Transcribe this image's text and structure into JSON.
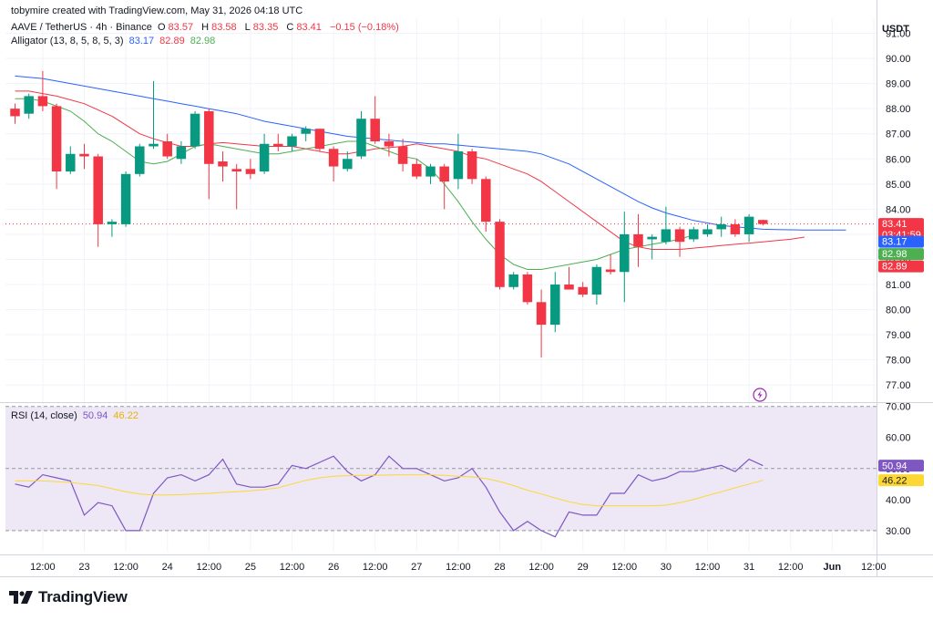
{
  "header": {
    "attribution": "tobymire created with TradingView.com, May 31, 2026 04:18 UTC"
  },
  "symbol": {
    "title": "AAVE / TetherUS · 4h · Binance",
    "ohlc": {
      "o_label": "O",
      "o": "83.57",
      "h_label": "H",
      "h": "83.58",
      "l_label": "L",
      "l": "83.35",
      "c_label": "C",
      "c": "83.41",
      "change": "−0.15 (−0.18%)"
    }
  },
  "alligator_legend": {
    "label": "Alligator (13, 8, 5, 8, 5, 3)",
    "values": [
      "83.17",
      "82.89",
      "82.98"
    ]
  },
  "rsi_legend": {
    "label": "RSI (14, close)",
    "values": [
      "50.94",
      "46.22"
    ]
  },
  "currency": "USDT",
  "price_labels": {
    "last": "83.41",
    "countdown": "03:41:59",
    "jaw": "83.17",
    "lips": "82.98",
    "teeth": "82.89"
  },
  "rsi_labels": {
    "rsi": "50.94",
    "ma": "46.22"
  },
  "brand": {
    "name": "TradingView"
  },
  "colors": {
    "up": "#089981",
    "down": "#F23645",
    "jaw": "#2962FF",
    "teeth": "#F23645",
    "lips": "#4CAF50",
    "rsi": "#7E57C2",
    "rsi_ma": "#FDD835",
    "rsi_band": "#EDE7F6",
    "text": "#131722",
    "grid": "#F0F3FA"
  },
  "icons": {
    "lightning": "lightning-icon"
  },
  "chart_data": [
    {
      "type": "candlestick",
      "title": "AAVE / TetherUS · 4h · Binance",
      "ylim": [
        76.5,
        91.6
      ],
      "yticks": [
        77,
        78,
        79,
        80,
        81,
        82,
        83,
        84,
        85,
        86,
        87,
        88,
        89,
        90,
        91
      ],
      "x_tick_labels": [
        {
          "i": 2,
          "label": "12:00"
        },
        {
          "i": 5,
          "label": "23"
        },
        {
          "i": 8,
          "label": "12:00"
        },
        {
          "i": 11,
          "label": "24"
        },
        {
          "i": 14,
          "label": "12:00"
        },
        {
          "i": 17,
          "label": "25"
        },
        {
          "i": 20,
          "label": "12:00"
        },
        {
          "i": 23,
          "label": "26"
        },
        {
          "i": 26,
          "label": "12:00"
        },
        {
          "i": 29,
          "label": "27"
        },
        {
          "i": 32,
          "label": "12:00"
        },
        {
          "i": 35,
          "label": "28"
        },
        {
          "i": 38,
          "label": "12:00"
        },
        {
          "i": 41,
          "label": "29"
        },
        {
          "i": 44,
          "label": "12:00"
        },
        {
          "i": 47,
          "label": "30"
        },
        {
          "i": 50,
          "label": "12:00"
        },
        {
          "i": 53,
          "label": "31"
        },
        {
          "i": 56,
          "label": "12:00"
        },
        {
          "i": 59,
          "label": "Jun"
        },
        {
          "i": 62,
          "label": "12:00"
        }
      ],
      "candles": [
        {
          "o": 88.0,
          "h": 88.2,
          "l": 87.4,
          "c": 87.7
        },
        {
          "o": 87.8,
          "h": 88.6,
          "l": 87.6,
          "c": 88.5
        },
        {
          "o": 88.5,
          "h": 89.5,
          "l": 87.9,
          "c": 88.1
        },
        {
          "o": 88.1,
          "h": 88.2,
          "l": 84.8,
          "c": 85.5
        },
        {
          "o": 85.5,
          "h": 86.5,
          "l": 85.4,
          "c": 86.2
        },
        {
          "o": 86.2,
          "h": 86.6,
          "l": 85.6,
          "c": 86.1
        },
        {
          "o": 86.1,
          "h": 86.2,
          "l": 82.5,
          "c": 83.4
        },
        {
          "o": 83.4,
          "h": 83.6,
          "l": 82.9,
          "c": 83.5
        },
        {
          "o": 83.4,
          "h": 85.5,
          "l": 83.3,
          "c": 85.4
        },
        {
          "o": 85.4,
          "h": 86.6,
          "l": 85.3,
          "c": 86.5
        },
        {
          "o": 86.5,
          "h": 89.1,
          "l": 86.4,
          "c": 86.6
        },
        {
          "o": 86.7,
          "h": 87.0,
          "l": 86.0,
          "c": 86.1
        },
        {
          "o": 86.0,
          "h": 86.7,
          "l": 85.8,
          "c": 86.5
        },
        {
          "o": 86.5,
          "h": 87.9,
          "l": 86.4,
          "c": 87.8
        },
        {
          "o": 87.9,
          "h": 88.0,
          "l": 84.4,
          "c": 85.8
        },
        {
          "o": 85.9,
          "h": 86.3,
          "l": 85.1,
          "c": 85.7
        },
        {
          "o": 85.6,
          "h": 85.8,
          "l": 84.0,
          "c": 85.5
        },
        {
          "o": 85.6,
          "h": 86.0,
          "l": 85.2,
          "c": 85.4
        },
        {
          "o": 85.5,
          "h": 87.0,
          "l": 85.4,
          "c": 86.6
        },
        {
          "o": 86.6,
          "h": 87.0,
          "l": 86.3,
          "c": 86.5
        },
        {
          "o": 86.5,
          "h": 87.0,
          "l": 86.3,
          "c": 86.9
        },
        {
          "o": 87.0,
          "h": 87.3,
          "l": 86.7,
          "c": 87.2
        },
        {
          "o": 87.2,
          "h": 87.2,
          "l": 86.3,
          "c": 86.4
        },
        {
          "o": 86.4,
          "h": 86.5,
          "l": 85.1,
          "c": 85.7
        },
        {
          "o": 85.6,
          "h": 86.3,
          "l": 85.5,
          "c": 86.0
        },
        {
          "o": 86.1,
          "h": 87.9,
          "l": 86.0,
          "c": 87.6
        },
        {
          "o": 87.6,
          "h": 88.5,
          "l": 86.6,
          "c": 86.7
        },
        {
          "o": 86.7,
          "h": 87.0,
          "l": 86.1,
          "c": 86.5
        },
        {
          "o": 86.5,
          "h": 86.8,
          "l": 85.5,
          "c": 85.8
        },
        {
          "o": 85.8,
          "h": 86.0,
          "l": 85.2,
          "c": 85.3
        },
        {
          "o": 85.3,
          "h": 85.8,
          "l": 85.0,
          "c": 85.7
        },
        {
          "o": 85.7,
          "h": 85.8,
          "l": 84.0,
          "c": 85.1
        },
        {
          "o": 85.2,
          "h": 87.0,
          "l": 84.8,
          "c": 86.3
        },
        {
          "o": 86.3,
          "h": 86.4,
          "l": 85.0,
          "c": 85.2
        },
        {
          "o": 85.2,
          "h": 85.3,
          "l": 83.1,
          "c": 83.5
        },
        {
          "o": 83.5,
          "h": 83.6,
          "l": 80.8,
          "c": 80.9
        },
        {
          "o": 80.9,
          "h": 81.5,
          "l": 80.8,
          "c": 81.4
        },
        {
          "o": 81.4,
          "h": 81.5,
          "l": 80.2,
          "c": 80.3
        },
        {
          "o": 80.3,
          "h": 80.8,
          "l": 78.1,
          "c": 79.4
        },
        {
          "o": 79.4,
          "h": 81.5,
          "l": 79.1,
          "c": 81.0
        },
        {
          "o": 81.0,
          "h": 81.7,
          "l": 80.8,
          "c": 80.8
        },
        {
          "o": 80.9,
          "h": 81.1,
          "l": 80.5,
          "c": 80.6
        },
        {
          "o": 80.6,
          "h": 81.8,
          "l": 80.2,
          "c": 81.7
        },
        {
          "o": 81.6,
          "h": 82.2,
          "l": 81.4,
          "c": 81.5
        },
        {
          "o": 81.5,
          "h": 83.9,
          "l": 80.3,
          "c": 83.0
        },
        {
          "o": 83.0,
          "h": 83.8,
          "l": 81.7,
          "c": 82.5
        },
        {
          "o": 82.8,
          "h": 83.0,
          "l": 82.0,
          "c": 82.9
        },
        {
          "o": 82.7,
          "h": 84.1,
          "l": 82.6,
          "c": 83.2
        },
        {
          "o": 83.2,
          "h": 83.3,
          "l": 82.1,
          "c": 82.7
        },
        {
          "o": 82.8,
          "h": 83.3,
          "l": 82.7,
          "c": 83.2
        },
        {
          "o": 83.0,
          "h": 83.4,
          "l": 82.9,
          "c": 83.2
        },
        {
          "o": 83.2,
          "h": 83.7,
          "l": 82.9,
          "c": 83.4
        },
        {
          "o": 83.4,
          "h": 83.6,
          "l": 82.9,
          "c": 83.0
        },
        {
          "o": 83.0,
          "h": 83.8,
          "l": 82.7,
          "c": 83.7
        },
        {
          "o": 83.57,
          "h": 83.58,
          "l": 83.35,
          "c": 83.41
        }
      ],
      "last_price_line": 83.41,
      "series": [
        {
          "name": "Jaw",
          "offset": 0,
          "values": [
            89.3,
            89.25,
            89.2,
            89.1,
            89.0,
            88.9,
            88.8,
            88.7,
            88.6,
            88.5,
            88.4,
            88.3,
            88.2,
            88.1,
            88.0,
            87.9,
            87.8,
            87.65,
            87.5,
            87.4,
            87.3,
            87.2,
            87.1,
            87.0,
            86.9,
            86.85,
            86.8,
            86.75,
            86.7,
            86.65,
            86.6,
            86.6,
            86.55,
            86.5,
            86.45,
            86.4,
            86.35,
            86.3,
            86.2,
            86.0,
            85.8,
            85.5,
            85.2,
            84.9,
            84.6,
            84.3,
            84.05,
            83.85,
            83.7,
            83.55,
            83.45,
            83.35,
            83.3,
            83.25,
            83.2,
            83.19,
            83.18,
            83.17,
            83.17,
            83.17,
            83.17
          ]
        },
        {
          "name": "Teeth",
          "offset": 0,
          "values": [
            88.7,
            88.7,
            88.6,
            88.5,
            88.35,
            88.2,
            87.95,
            87.7,
            87.35,
            87.0,
            86.8,
            86.65,
            86.5,
            86.5,
            86.6,
            86.65,
            86.6,
            86.55,
            86.5,
            86.5,
            86.5,
            86.4,
            86.3,
            86.2,
            86.2,
            86.3,
            86.4,
            86.45,
            86.5,
            86.6,
            86.5,
            86.4,
            86.3,
            86.1,
            86.0,
            85.8,
            85.6,
            85.4,
            85.1,
            84.7,
            84.3,
            83.9,
            83.5,
            83.1,
            82.7,
            82.5,
            82.4,
            82.4,
            82.4,
            82.45,
            82.5,
            82.55,
            82.6,
            82.65,
            82.7,
            82.75,
            82.8,
            82.89
          ]
        },
        {
          "name": "Lips",
          "offset": 0,
          "values": [
            88.4,
            88.4,
            88.3,
            88.1,
            87.9,
            87.5,
            87.0,
            86.7,
            86.3,
            85.9,
            85.8,
            85.9,
            86.2,
            86.5,
            86.6,
            86.5,
            86.4,
            86.3,
            86.2,
            86.2,
            86.3,
            86.4,
            86.5,
            86.6,
            86.7,
            86.7,
            86.5,
            86.3,
            86.1,
            86.0,
            85.6,
            85.0,
            84.3,
            83.5,
            82.8,
            82.2,
            81.8,
            81.6,
            81.6,
            81.7,
            81.8,
            81.9,
            82.0,
            82.2,
            82.4,
            82.5,
            82.6,
            82.7,
            82.8,
            82.98
          ]
        }
      ]
    },
    {
      "type": "line",
      "title": "RSI (14, close)",
      "ylim": [
        23.5,
        70.5
      ],
      "yticks": [
        30,
        40,
        50,
        60,
        70
      ],
      "bands": [
        30,
        50,
        70
      ],
      "series": [
        {
          "name": "RSI",
          "values": [
            45,
            44,
            48,
            47,
            46,
            35,
            39,
            38,
            30,
            30,
            42,
            47,
            48,
            46,
            48,
            53,
            45,
            44,
            44,
            45,
            51,
            50,
            52,
            54,
            49,
            46,
            48,
            54,
            50,
            50,
            48,
            46,
            47,
            50,
            44,
            36,
            30,
            33,
            30,
            28,
            36,
            35,
            35,
            42,
            42,
            48,
            46,
            47,
            49,
            49,
            50,
            51,
            49,
            53,
            50.94
          ]
        },
        {
          "name": "RSI MA",
          "values": [
            46,
            46,
            46,
            45.8,
            45.5,
            45,
            44.5,
            43.5,
            42.5,
            41.8,
            41.5,
            41.5,
            41.6,
            41.8,
            42,
            42.3,
            42.5,
            42.8,
            43.2,
            43.8,
            45,
            46.2,
            47,
            47.5,
            47.7,
            47.8,
            47.8,
            47.9,
            48,
            48,
            48,
            47.8,
            47.5,
            47.3,
            46.8,
            45.8,
            44.5,
            43,
            41.8,
            40.5,
            39.3,
            38.4,
            38,
            38,
            38,
            38,
            38,
            38.2,
            39,
            40,
            41.3,
            42.5,
            43.8,
            45,
            46.22
          ]
        }
      ]
    }
  ]
}
